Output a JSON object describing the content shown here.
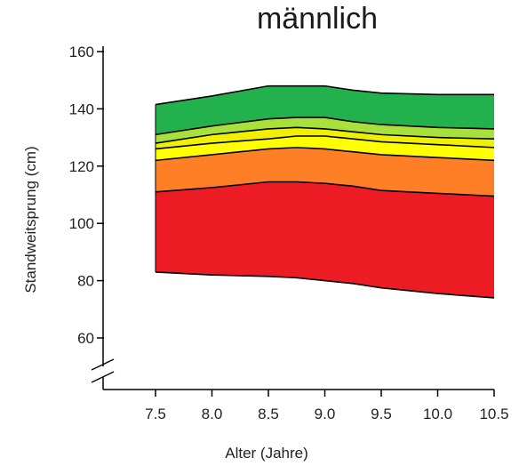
{
  "chart_data": {
    "type": "area",
    "title": "männlich",
    "xlabel": "Alter (Jahre)",
    "ylabel": "Standweitsprung (cm)",
    "xlim": [
      6.4,
      10.5
    ],
    "ylim": [
      45,
      160
    ],
    "x": [
      7.5,
      8.0,
      8.5,
      8.75,
      9.0,
      9.25,
      9.5,
      10.0,
      10.5
    ],
    "x_ticks": [
      7.5,
      8.0,
      8.5,
      9.0,
      9.5,
      10.0,
      10.5
    ],
    "x_tick_labels": [
      "7.5",
      "8.0",
      "8.5",
      "9.0",
      "9.5",
      "10.0",
      "10.5"
    ],
    "y_ticks": [
      60,
      80,
      100,
      120,
      140,
      160
    ],
    "y_tick_labels": [
      "60",
      "80",
      "100",
      "120",
      "140",
      "160"
    ],
    "axis_break": true,
    "grid": false,
    "boundaries": [
      [
        83,
        82,
        81.5,
        81,
        80,
        79,
        77.5,
        75.5,
        74
      ],
      [
        111,
        112.5,
        114.5,
        114.5,
        114,
        113,
        111.5,
        110.5,
        109.5
      ],
      [
        122,
        124,
        126,
        126.5,
        126,
        125,
        124,
        123,
        122
      ],
      [
        126,
        128,
        129.5,
        130.5,
        130.5,
        129.5,
        128.5,
        127.5,
        126.5
      ],
      [
        128,
        131,
        133,
        133.5,
        133,
        132,
        131,
        130,
        129.5
      ],
      [
        131,
        134,
        136.5,
        137,
        137,
        135.5,
        134.5,
        133.5,
        133
      ],
      [
        141.5,
        144.5,
        148,
        148,
        148,
        146.5,
        145.5,
        145,
        145
      ]
    ],
    "band_colors": [
      "#ed1c24",
      "#ff7f27",
      "#ffff00",
      "#f0f000",
      "#a8e03c",
      "#22b14c"
    ]
  }
}
